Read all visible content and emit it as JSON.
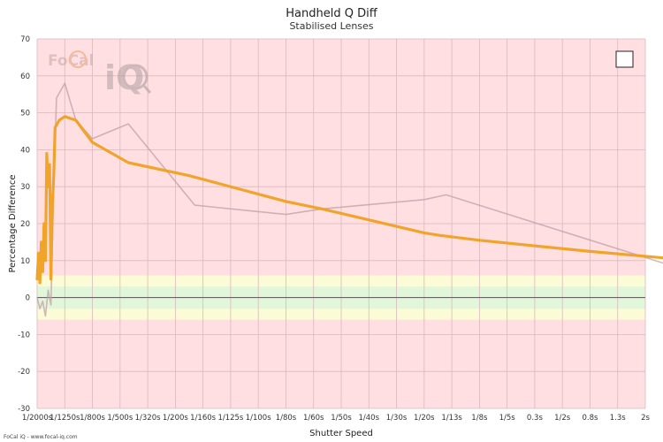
{
  "chart_data": {
    "type": "line",
    "title": "Handheld Q Diff",
    "subtitle": "Stabilised Lenses",
    "xlabel": "Shutter Speed",
    "ylabel": "Percentage Difference",
    "ylim": [
      -30,
      70
    ],
    "yticks": [
      -30,
      -20,
      -10,
      0,
      10,
      20,
      30,
      40,
      50,
      60,
      70
    ],
    "categories": [
      "1/2000s",
      "1/1250s",
      "1/800s",
      "1/500s",
      "1/320s",
      "1/200s",
      "1/160s",
      "1/125s",
      "1/100s",
      "1/80s",
      "1/60s",
      "1/50s",
      "1/40s",
      "1/30s",
      "1/20s",
      "1/13s",
      "1/8s",
      "1/5s",
      "0.3s",
      "1/2s",
      "0.8s",
      "1.3s",
      "2s"
    ],
    "grid": true,
    "bands": [
      {
        "from": -6,
        "to": -3,
        "color": "#fbfbd6"
      },
      {
        "from": -3,
        "to": 3,
        "color": "#e2f7da"
      },
      {
        "from": 3,
        "to": 6,
        "color": "#fbfbd6"
      }
    ],
    "zero_line": 0,
    "series": [
      {
        "color": "#f0a020",
        "points": [
          [
            0.0,
            5
          ],
          [
            0.05,
            12
          ],
          [
            0.1,
            4
          ],
          [
            0.15,
            15
          ],
          [
            0.2,
            7
          ],
          [
            0.25,
            20
          ],
          [
            0.3,
            10
          ],
          [
            0.35,
            39
          ],
          [
            0.4,
            30
          ],
          [
            0.45,
            36
          ],
          [
            0.5,
            5
          ],
          [
            0.55,
            25
          ],
          [
            0.6,
            33
          ],
          [
            0.65,
            46
          ],
          [
            0.8,
            48
          ],
          [
            1.0,
            49
          ],
          [
            1.4,
            48
          ],
          [
            2.0,
            42
          ],
          [
            3.3,
            36.5
          ],
          [
            5.5,
            33
          ],
          [
            9.0,
            26
          ],
          [
            10.3,
            24
          ],
          [
            14.0,
            17.5
          ],
          [
            14.6,
            16.8
          ],
          [
            16.0,
            15.5
          ],
          [
            20.0,
            12.5
          ],
          [
            23.0,
            10.5
          ]
        ]
      },
      {
        "color": "#c0a0a8",
        "points": [
          [
            0.0,
            0
          ],
          [
            0.1,
            -3
          ],
          [
            0.2,
            -1
          ],
          [
            0.3,
            -5
          ],
          [
            0.4,
            2
          ],
          [
            0.5,
            -2
          ],
          [
            0.6,
            30
          ],
          [
            0.7,
            54
          ],
          [
            1.0,
            58
          ],
          [
            1.4,
            48
          ],
          [
            2.0,
            43
          ],
          [
            3.3,
            47
          ],
          [
            5.7,
            25
          ],
          [
            9.0,
            22.5
          ],
          [
            10.3,
            24
          ],
          [
            14.0,
            26.5
          ],
          [
            14.8,
            27.8
          ],
          [
            23.0,
            8.5
          ]
        ]
      }
    ]
  },
  "legend_box": "",
  "logo": {
    "text_a": "FoCal",
    "text_b": "iQ"
  },
  "footer": {
    "credit": "FoCal iQ - www.focal-iq.com"
  }
}
